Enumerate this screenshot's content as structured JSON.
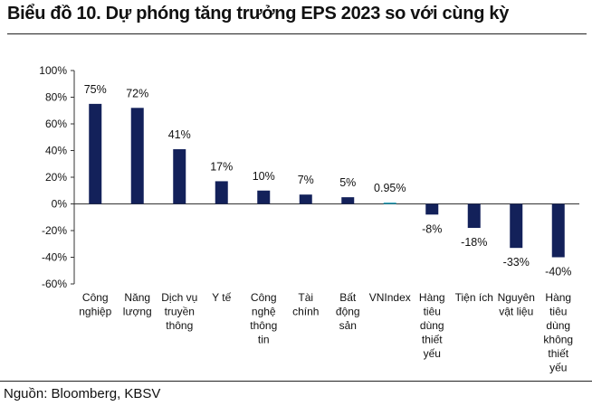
{
  "chart_data": {
    "type": "bar",
    "title": "Biểu đồ 10. Dự phóng tăng trưởng EPS 2023 so với cùng kỳ",
    "source": "Nguồn: Bloomberg, KBSV",
    "xlabel": "",
    "ylabel": "",
    "ylim": [
      -60,
      100
    ],
    "yticks": [
      100,
      80,
      60,
      40,
      20,
      0,
      -20,
      -40,
      -60
    ],
    "ytick_labels": [
      "100%",
      "80%",
      "60%",
      "40%",
      "20%",
      "0%",
      "-20%",
      "-40%",
      "-60%"
    ],
    "grid": false,
    "categories": [
      [
        "Công",
        "nghiệp"
      ],
      [
        "Năng",
        "lượng"
      ],
      [
        "Dịch vụ",
        "truyền",
        "thông"
      ],
      [
        "Y tế"
      ],
      [
        "Công",
        "nghệ",
        "thông",
        "tin"
      ],
      [
        "Tài",
        "chính"
      ],
      [
        "Bất",
        "động",
        "sản"
      ],
      [
        "VNIndex"
      ],
      [
        "Hàng",
        "tiêu",
        "dùng",
        "thiết",
        "yếu"
      ],
      [
        "Tiện ích"
      ],
      [
        "Nguyên",
        "vật liệu"
      ],
      [
        "Hàng",
        "tiêu",
        "dùng",
        "không",
        "thiết",
        "yếu"
      ]
    ],
    "values": [
      75,
      72,
      41,
      17,
      10,
      7,
      5,
      0.95,
      -8,
      -18,
      -33,
      -40
    ],
    "data_labels": [
      "75%",
      "72%",
      "41%",
      "17%",
      "10%",
      "7%",
      "5%",
      "0.95%",
      "-8%",
      "-18%",
      "-33%",
      "-40%"
    ],
    "colors": {
      "bar": "#13215a",
      "highlight": "#1f9bb5",
      "axis": "#333333"
    },
    "highlight_index": 7
  }
}
